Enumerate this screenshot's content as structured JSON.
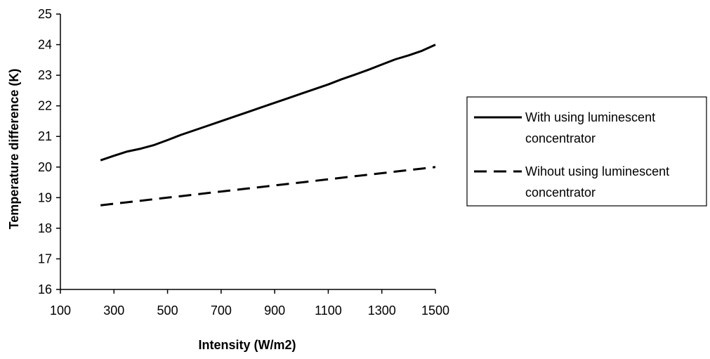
{
  "chart_data": {
    "type": "line",
    "title": "",
    "xlabel": "Intensity (W/m2)",
    "ylabel": "Temperature difference (K)",
    "xlim": [
      100,
      1500
    ],
    "ylim": [
      16,
      25
    ],
    "xticks": [
      "100",
      "300",
      "500",
      "700",
      "900",
      "1100",
      "1300",
      "1500"
    ],
    "yticks": [
      "16",
      "17",
      "18",
      "19",
      "20",
      "21",
      "22",
      "23",
      "24",
      "25"
    ],
    "grid": false,
    "legend_position": "right",
    "series": [
      {
        "name": "With using luminescent concentrator",
        "style": "solid",
        "color": "#000000",
        "x": [
          250,
          300,
          350,
          400,
          450,
          500,
          550,
          600,
          650,
          700,
          750,
          800,
          850,
          900,
          950,
          1000,
          1050,
          1100,
          1150,
          1200,
          1250,
          1300,
          1350,
          1400,
          1450,
          1500
        ],
        "y": [
          20.22,
          20.37,
          20.51,
          20.6,
          20.72,
          20.88,
          21.05,
          21.2,
          21.35,
          21.5,
          21.65,
          21.8,
          21.95,
          22.1,
          22.25,
          22.4,
          22.55,
          22.7,
          22.87,
          23.02,
          23.18,
          23.35,
          23.52,
          23.65,
          23.8,
          24.0
        ]
      },
      {
        "name": "Wihout using luminescent concentrator",
        "style": "dashed",
        "color": "#000000",
        "x": [
          250,
          300,
          350,
          400,
          450,
          500,
          550,
          600,
          650,
          700,
          750,
          800,
          850,
          900,
          950,
          1000,
          1050,
          1100,
          1150,
          1200,
          1250,
          1300,
          1350,
          1400,
          1450,
          1500
        ],
        "y": [
          18.75,
          18.8,
          18.85,
          18.9,
          18.95,
          19.0,
          19.05,
          19.1,
          19.15,
          19.2,
          19.25,
          19.3,
          19.35,
          19.4,
          19.45,
          19.5,
          19.55,
          19.6,
          19.65,
          19.7,
          19.75,
          19.8,
          19.85,
          19.9,
          19.95,
          20.0
        ]
      }
    ],
    "legend_lines": [
      [
        "With using luminescent",
        "concentrator"
      ],
      [
        "Wihout using luminescent",
        "concentrator"
      ]
    ]
  }
}
